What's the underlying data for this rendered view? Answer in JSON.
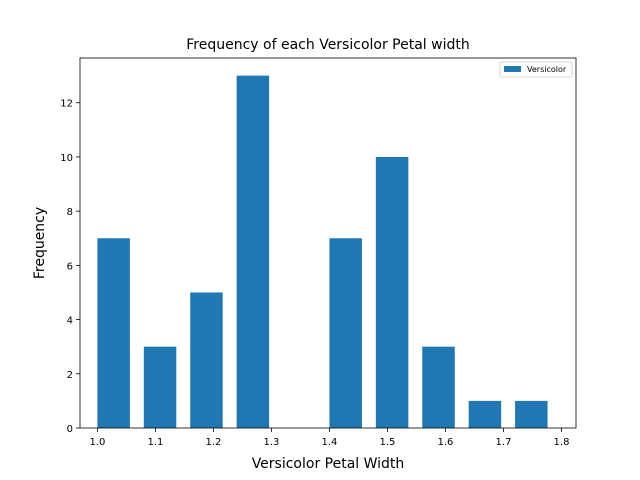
{
  "chart_data": {
    "type": "bar",
    "title": "Frequency of each Versicolor Petal width",
    "xlabel": "Versicolor Petal Width",
    "ylabel": "Frequency",
    "xlim": [
      0.97,
      1.825
    ],
    "ylim": [
      0,
      13.65
    ],
    "xticks": [
      1.0,
      1.1,
      1.2,
      1.3,
      1.4,
      1.5,
      1.6,
      1.7,
      1.8
    ],
    "xtick_labels": [
      "1.0",
      "1.1",
      "1.2",
      "1.3",
      "1.4",
      "1.5",
      "1.6",
      "1.7",
      "1.8"
    ],
    "yticks": [
      0,
      2,
      4,
      6,
      8,
      10,
      12
    ],
    "ytick_labels": [
      "0",
      "2",
      "4",
      "6",
      "8",
      "10",
      "12"
    ],
    "bar_width": 0.056,
    "series": [
      {
        "name": "Versicolor",
        "color": "#1f77b4",
        "bins": [
          {
            "start": 1.0,
            "end": 1.08,
            "value": 7
          },
          {
            "start": 1.08,
            "end": 1.16,
            "value": 3
          },
          {
            "start": 1.16,
            "end": 1.24,
            "value": 5
          },
          {
            "start": 1.24,
            "end": 1.32,
            "value": 13
          },
          {
            "start": 1.32,
            "end": 1.4,
            "value": 0
          },
          {
            "start": 1.4,
            "end": 1.48,
            "value": 7
          },
          {
            "start": 1.48,
            "end": 1.56,
            "value": 10
          },
          {
            "start": 1.56,
            "end": 1.64,
            "value": 3
          },
          {
            "start": 1.64,
            "end": 1.72,
            "value": 1
          },
          {
            "start": 1.72,
            "end": 1.8,
            "value": 1
          }
        ]
      }
    ],
    "legend": {
      "position": "upper right",
      "label": "Versicolor"
    },
    "grid": false
  }
}
